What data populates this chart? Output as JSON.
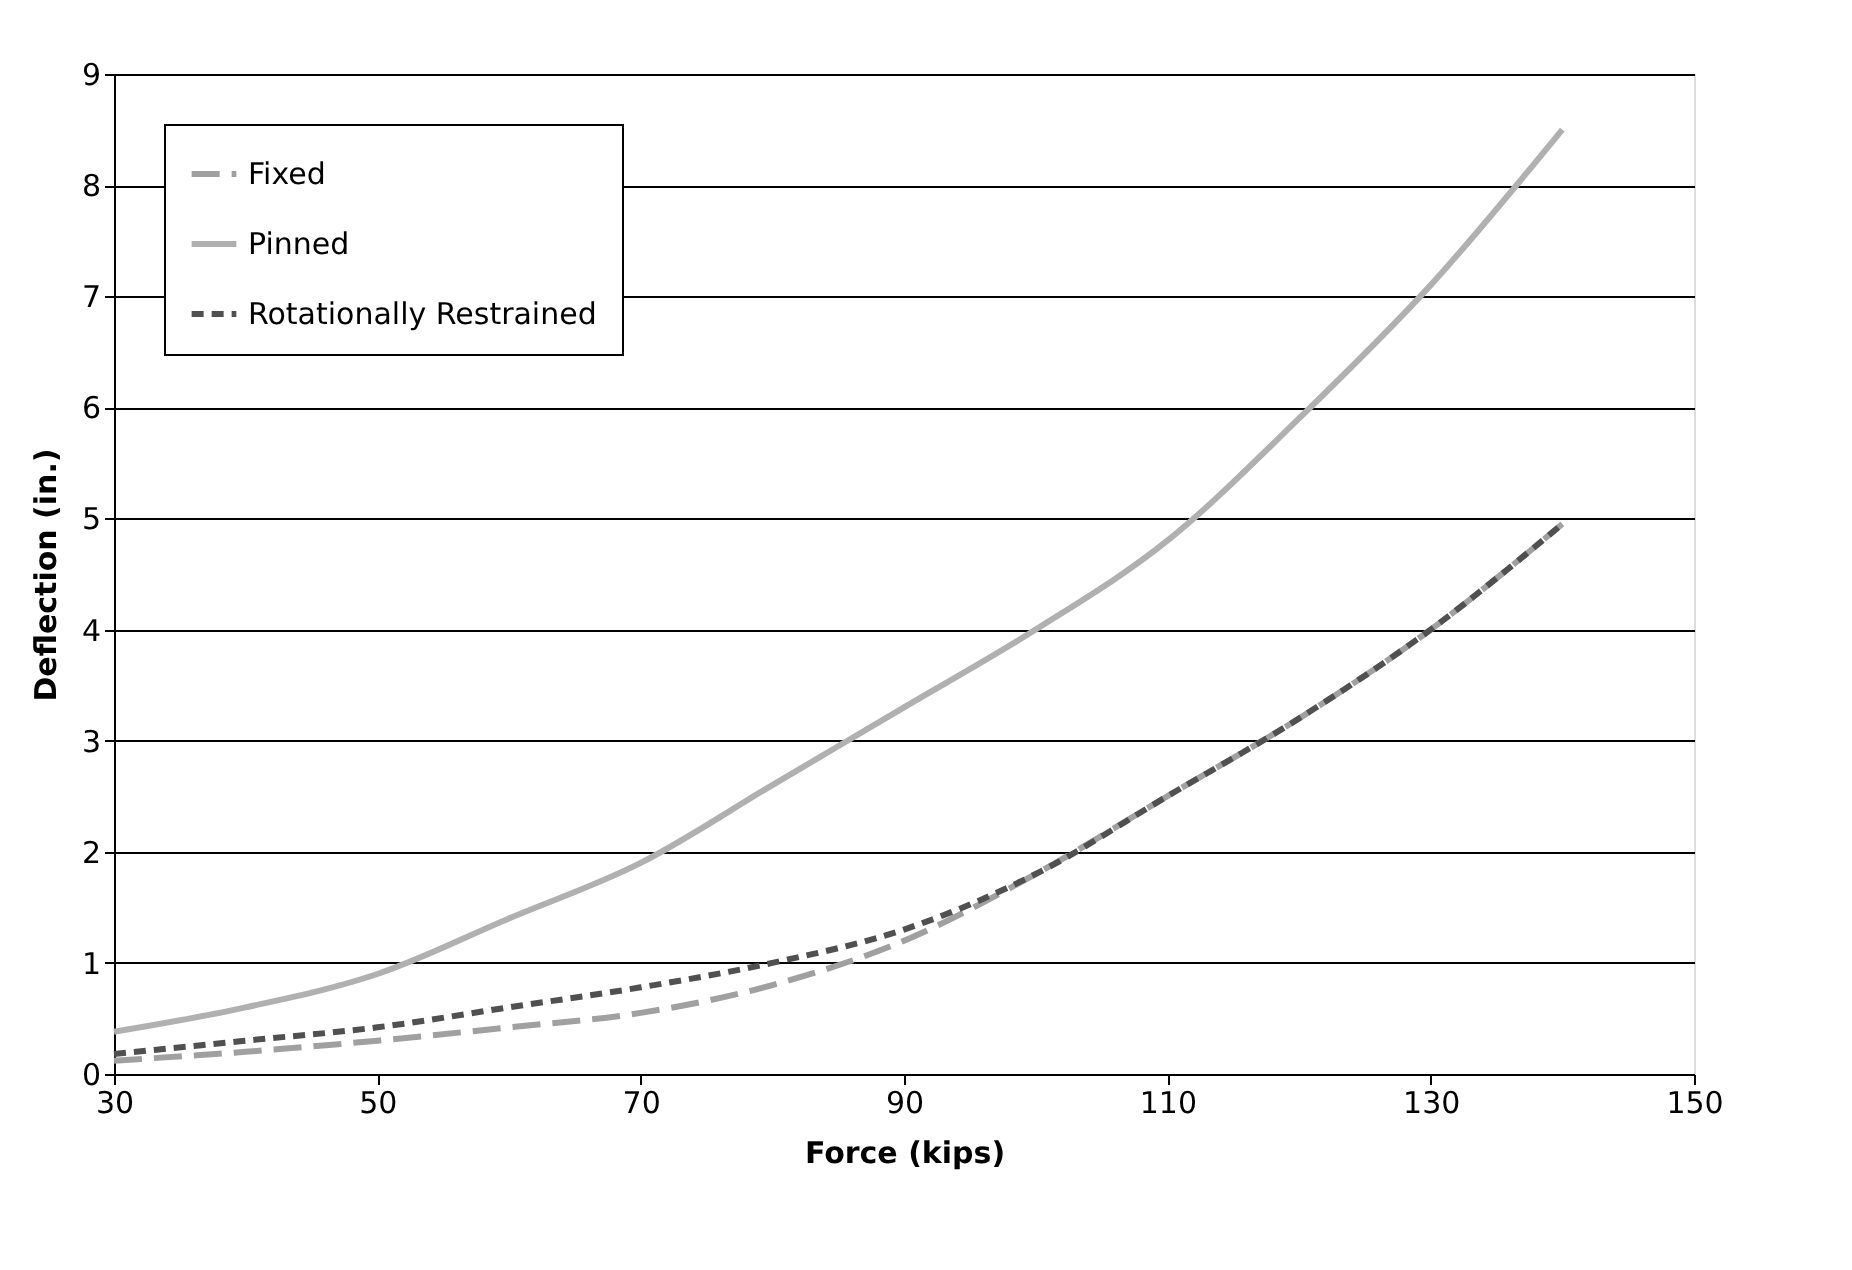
{
  "chart_data": {
    "type": "line",
    "xlabel": "Force (kips)",
    "ylabel": "Deflection (in.)",
    "x": [
      30,
      40,
      50,
      60,
      70,
      80,
      90,
      100,
      110,
      120,
      130,
      140
    ],
    "series": [
      {
        "name": "Fixed",
        "color": "#a0a0a0",
        "line_style": "dashed",
        "values": [
          0.12,
          0.2,
          0.3,
          0.42,
          0.55,
          0.8,
          1.2,
          1.8,
          2.5,
          3.2,
          4.0,
          4.95
        ]
      },
      {
        "name": "Pinned",
        "color": "#b0b0b0",
        "line_style": "solid",
        "values": [
          0.38,
          0.6,
          0.9,
          1.4,
          1.9,
          2.6,
          3.3,
          4.0,
          4.8,
          5.9,
          7.1,
          8.5
        ]
      },
      {
        "name": "Rotationally Restrained",
        "color": "#505050",
        "line_style": "dotted",
        "values": [
          0.18,
          0.3,
          0.42,
          0.6,
          0.78,
          1.0,
          1.3,
          1.8,
          2.5,
          3.2,
          4.0,
          4.95
        ]
      }
    ],
    "xlim": [
      30,
      150
    ],
    "xticks": [
      30,
      50,
      70,
      90,
      110,
      130,
      150
    ],
    "ylim": [
      0,
      9
    ],
    "yticks": [
      0,
      1,
      2,
      3,
      4,
      5,
      6,
      7,
      8,
      9
    ],
    "grid": "y",
    "legend": "top left",
    "marker": "none"
  }
}
